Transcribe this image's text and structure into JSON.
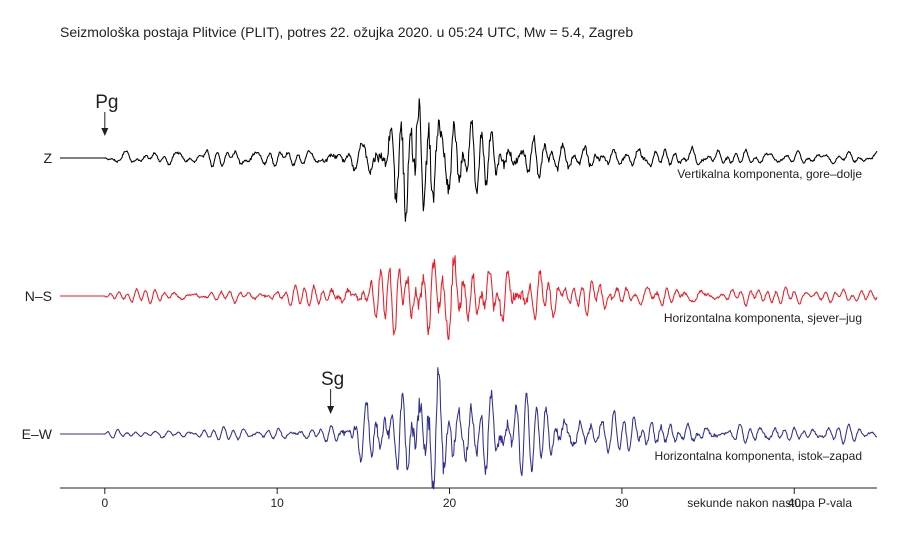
{
  "chart_data": {
    "type": "line",
    "title": "Seizmološka postaja Plitvice (PLIT), potres 22. ožujka 2020. u 05:24 UTC, Mw = 5.4, Zagreb",
    "xlabel": "sekunde nakon nastupa P-vala",
    "xlim": [
      -2.6,
      44.8
    ],
    "x_ticks": [
      0,
      10,
      20,
      30,
      40
    ],
    "grid": false,
    "series": [
      {
        "name": "Z",
        "description": "Vertikalna komponenta, gore–dolje",
        "color": "#000000",
        "peak_amplitude": 1.0,
        "envelope": [
          [
            0,
            0.03
          ],
          [
            0.3,
            0.06
          ],
          [
            6,
            0.08
          ],
          [
            12,
            0.09
          ],
          [
            15,
            0.18
          ],
          [
            16.5,
            0.55
          ],
          [
            17.3,
            1.0
          ],
          [
            18.5,
            0.9
          ],
          [
            19.5,
            0.6
          ],
          [
            21,
            0.45
          ],
          [
            23,
            0.32
          ],
          [
            27,
            0.18
          ],
          [
            32,
            0.12
          ],
          [
            38,
            0.07
          ],
          [
            45,
            0.06
          ]
        ]
      },
      {
        "name": "N–S",
        "description": "Horizontalna komponenta, sjever–jug",
        "color": "#ed1c24",
        "peak_amplitude": 0.62,
        "envelope": [
          [
            0,
            0.02
          ],
          [
            0.3,
            0.05
          ],
          [
            6,
            0.07
          ],
          [
            12,
            0.09
          ],
          [
            15,
            0.18
          ],
          [
            16.5,
            0.35
          ],
          [
            17.5,
            0.48
          ],
          [
            19,
            0.55
          ],
          [
            20.3,
            0.62
          ],
          [
            21.5,
            0.5
          ],
          [
            23,
            0.38
          ],
          [
            26,
            0.22
          ],
          [
            30,
            0.14
          ],
          [
            36,
            0.08
          ],
          [
            45,
            0.06
          ]
        ]
      },
      {
        "name": "E–W",
        "description": "Horizontalna komponenta, istok–zapad",
        "color": "#2e3192",
        "peak_amplitude": 0.72,
        "envelope": [
          [
            0,
            0.02
          ],
          [
            0.3,
            0.04
          ],
          [
            6,
            0.05
          ],
          [
            12,
            0.07
          ],
          [
            13.5,
            0.12
          ],
          [
            15,
            0.3
          ],
          [
            16.5,
            0.45
          ],
          [
            18,
            0.62
          ],
          [
            19,
            0.72
          ],
          [
            20.5,
            0.6
          ],
          [
            22.5,
            0.42
          ],
          [
            25,
            0.3
          ],
          [
            28,
            0.22
          ],
          [
            32,
            0.16
          ],
          [
            38,
            0.1
          ],
          [
            45,
            0.06
          ]
        ]
      }
    ],
    "annotations": [
      {
        "label": "Pg",
        "x": 0.0,
        "trace": "Z"
      },
      {
        "label": "Sg",
        "x": 13.1,
        "trace": "E–W"
      }
    ]
  }
}
